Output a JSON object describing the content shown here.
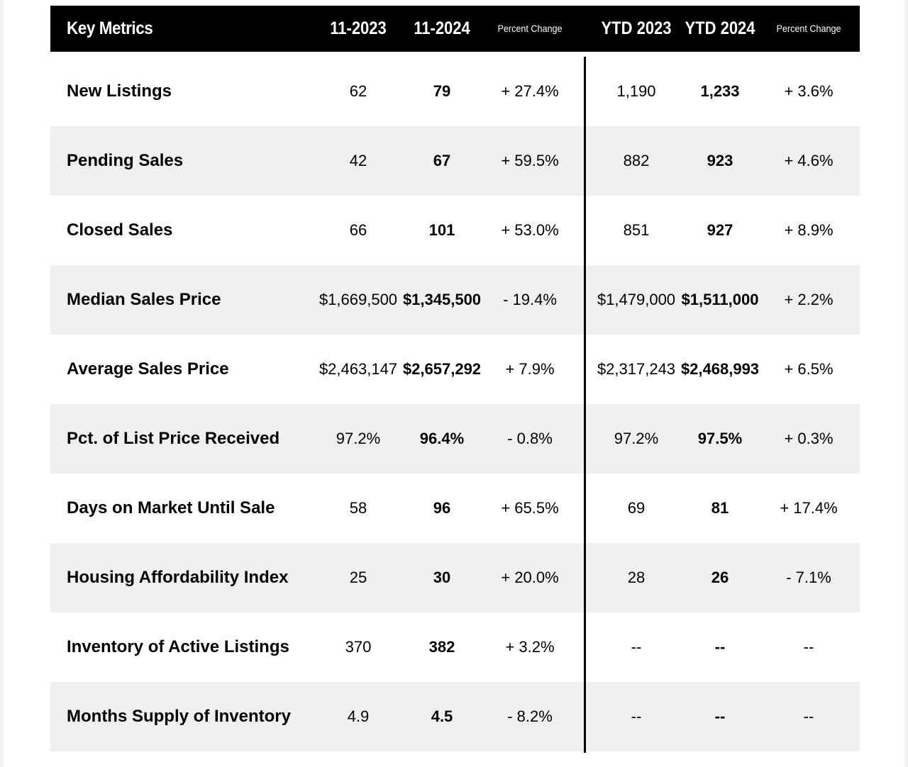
{
  "header": {
    "title": "Key Metrics",
    "col_month_prev": "11-2023",
    "col_month_curr": "11-2024",
    "col_month_change": "Percent Change",
    "col_ytd_prev": "YTD 2023",
    "col_ytd_curr": "YTD 2024",
    "col_ytd_change": "Percent Change"
  },
  "rows": [
    {
      "metric": "New Listings",
      "m_prev": "62",
      "m_curr": "79",
      "m_change": "+ 27.4%",
      "y_prev": "1,190",
      "y_curr": "1,233",
      "y_change": "+ 3.6%"
    },
    {
      "metric": "Pending Sales",
      "m_prev": "42",
      "m_curr": "67",
      "m_change": "+ 59.5%",
      "y_prev": "882",
      "y_curr": "923",
      "y_change": "+ 4.6%"
    },
    {
      "metric": "Closed Sales",
      "m_prev": "66",
      "m_curr": "101",
      "m_change": "+ 53.0%",
      "y_prev": "851",
      "y_curr": "927",
      "y_change": "+ 8.9%"
    },
    {
      "metric": "Median Sales Price",
      "m_prev": "$1,669,500",
      "m_curr": "$1,345,500",
      "m_change": "- 19.4%",
      "y_prev": "$1,479,000",
      "y_curr": "$1,511,000",
      "y_change": "+ 2.2%"
    },
    {
      "metric": "Average Sales Price",
      "m_prev": "$2,463,147",
      "m_curr": "$2,657,292",
      "m_change": "+ 7.9%",
      "y_prev": "$2,317,243",
      "y_curr": "$2,468,993",
      "y_change": "+ 6.5%"
    },
    {
      "metric": "Pct. of List Price Received",
      "m_prev": "97.2%",
      "m_curr": "96.4%",
      "m_change": "- 0.8%",
      "y_prev": "97.2%",
      "y_curr": "97.5%",
      "y_change": "+ 0.3%"
    },
    {
      "metric": "Days on Market Until Sale",
      "m_prev": "58",
      "m_curr": "96",
      "m_change": "+ 65.5%",
      "y_prev": "69",
      "y_curr": "81",
      "y_change": "+ 17.4%"
    },
    {
      "metric": "Housing Affordability Index",
      "m_prev": "25",
      "m_curr": "30",
      "m_change": "+ 20.0%",
      "y_prev": "28",
      "y_curr": "26",
      "y_change": "- 7.1%"
    },
    {
      "metric": "Inventory of Active Listings",
      "m_prev": "370",
      "m_curr": "382",
      "m_change": "+ 3.2%",
      "y_prev": "--",
      "y_curr": "--",
      "y_change": "--"
    },
    {
      "metric": "Months Supply of Inventory",
      "m_prev": "4.9",
      "m_curr": "4.5",
      "m_change": "- 8.2%",
      "y_prev": "--",
      "y_curr": "--",
      "y_change": "--"
    }
  ]
}
